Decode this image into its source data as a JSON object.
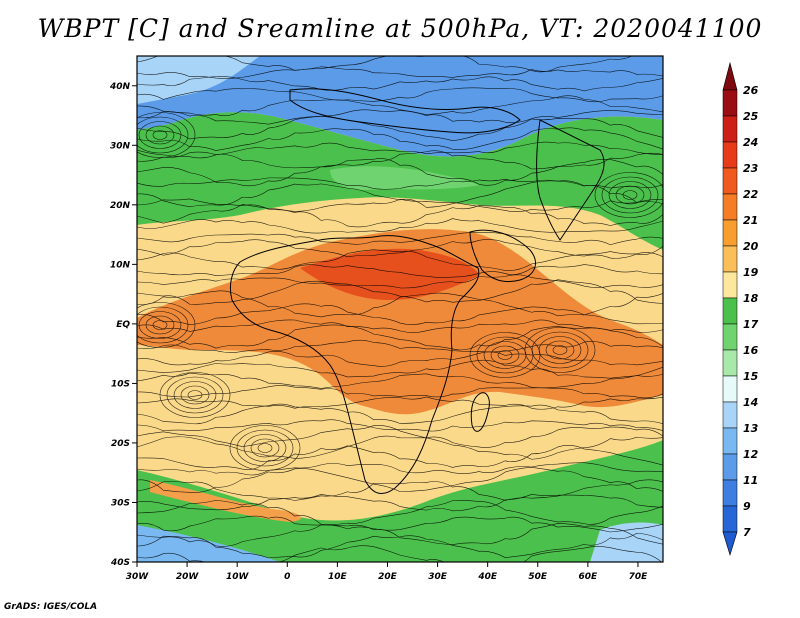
{
  "title": "WBPT [C] and Sreamline at 500hPa, VT: 2020041100",
  "credit": "GrADS: IGES/COLA",
  "map": {
    "lon_range": [
      -30,
      75
    ],
    "lat_range": [
      -40,
      45
    ],
    "lon_ticks": [
      "30W",
      "20W",
      "10W",
      "0",
      "10E",
      "20E",
      "30E",
      "40E",
      "50E",
      "60E",
      "70E"
    ],
    "lat_ticks": [
      "40N",
      "30N",
      "20N",
      "10N",
      "EQ",
      "10S",
      "20S",
      "30S",
      "40S"
    ],
    "field": "WBPT",
    "units": "C",
    "level": "500hPa",
    "valid_time": "2020041100",
    "overlay": "streamlines",
    "regions": [
      {
        "name": "north-cold",
        "value": 13,
        "color": "#5b9be8"
      },
      {
        "name": "north-green",
        "value": 17,
        "color": "#4cc04c"
      },
      {
        "name": "tropics-warm",
        "value": 19,
        "color": "#fbd98a"
      },
      {
        "name": "equatorial-hot",
        "value": 22,
        "color": "#ef8a3a"
      },
      {
        "name": "south-warm",
        "value": 19,
        "color": "#fbd98a"
      },
      {
        "name": "south-green",
        "value": 17,
        "color": "#4cc04c"
      }
    ]
  },
  "colorbar": {
    "labels": [
      "26",
      "25",
      "24",
      "23",
      "22",
      "21",
      "20",
      "19",
      "18",
      "17",
      "16",
      "15",
      "14",
      "13",
      "12",
      "11",
      "9",
      "7"
    ],
    "colors": [
      "#9a0d12",
      "#cc1f16",
      "#e63a19",
      "#f05a1f",
      "#f47d26",
      "#f79e2f",
      "#fbbf5a",
      "#fde79c",
      "#4cc04c",
      "#6fd46f",
      "#a8e8a8",
      "#e6fafa",
      "#a8d4f7",
      "#7ab8f2",
      "#5b9be8",
      "#3d7ee0",
      "#2766d7"
    ],
    "top_arrow_color": "#7c0a0e",
    "bottom_arrow_color": "#1e5ad0"
  }
}
